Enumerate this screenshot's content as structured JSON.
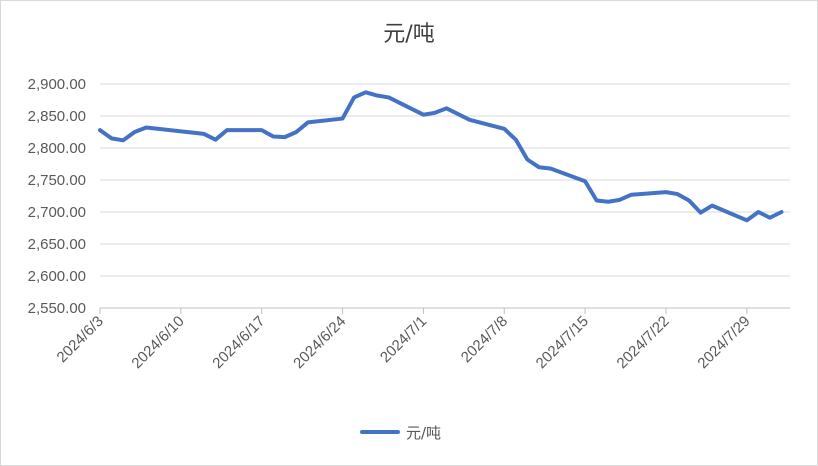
{
  "chart_data": {
    "type": "line",
    "title": "元/吨",
    "xlabel": "",
    "ylabel": "",
    "ylim": [
      2550,
      2900
    ],
    "y_ticks": [
      "2,550.00",
      "2,600.00",
      "2,650.00",
      "2,700.00",
      "2,750.00",
      "2,800.00",
      "2,850.00",
      "2,900.00"
    ],
    "x_ticks": [
      "2024/6/3",
      "2024/6/10",
      "2024/6/17",
      "2024/6/24",
      "2024/7/1",
      "2024/7/8",
      "2024/7/15",
      "2024/7/22",
      "2024/7/29"
    ],
    "grid": true,
    "legend": "bottom",
    "color": "#4472c4",
    "series": [
      {
        "name": "元/吨",
        "points": [
          [
            "2024/6/3",
            2828
          ],
          [
            "2024/6/4",
            2815
          ],
          [
            "2024/6/5",
            2812
          ],
          [
            "2024/6/6",
            2825
          ],
          [
            "2024/6/7",
            2832
          ],
          [
            "2024/6/12",
            2822
          ],
          [
            "2024/6/13",
            2813
          ],
          [
            "2024/6/14",
            2828
          ],
          [
            "2024/6/17",
            2828
          ],
          [
            "2024/6/18",
            2818
          ],
          [
            "2024/6/19",
            2817
          ],
          [
            "2024/6/20",
            2825
          ],
          [
            "2024/6/21",
            2840
          ],
          [
            "2024/6/24",
            2846
          ],
          [
            "2024/6/25",
            2879
          ],
          [
            "2024/6/26",
            2887
          ],
          [
            "2024/6/27",
            2882
          ],
          [
            "2024/6/28",
            2879
          ],
          [
            "2024/7/1",
            2852
          ],
          [
            "2024/7/2",
            2855
          ],
          [
            "2024/7/3",
            2862
          ],
          [
            "2024/7/5",
            2844
          ],
          [
            "2024/7/8",
            2830
          ],
          [
            "2024/7/9",
            2813
          ],
          [
            "2024/7/10",
            2782
          ],
          [
            "2024/7/11",
            2770
          ],
          [
            "2024/7/12",
            2768
          ],
          [
            "2024/7/15",
            2748
          ],
          [
            "2024/7/16",
            2718
          ],
          [
            "2024/7/17",
            2716
          ],
          [
            "2024/7/18",
            2719
          ],
          [
            "2024/7/19",
            2727
          ],
          [
            "2024/7/22",
            2731
          ],
          [
            "2024/7/23",
            2728
          ],
          [
            "2024/7/24",
            2718
          ],
          [
            "2024/7/25",
            2699
          ],
          [
            "2024/7/26",
            2710
          ],
          [
            "2024/7/29",
            2687
          ],
          [
            "2024/7/30",
            2700
          ],
          [
            "2024/7/31",
            2691
          ],
          [
            "2024/8/1",
            2700
          ]
        ]
      }
    ]
  }
}
